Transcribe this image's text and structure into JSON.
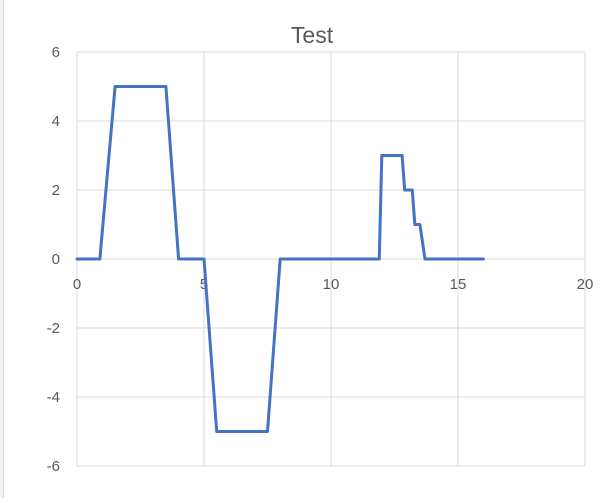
{
  "chart_data": {
    "type": "line",
    "title": "Test",
    "xlabel": "",
    "ylabel": "",
    "xlim": [
      0,
      20
    ],
    "ylim": [
      -6,
      6
    ],
    "x_ticks": [
      0,
      5,
      10,
      15,
      20
    ],
    "x_tick_labels": [
      "0",
      "5",
      "10",
      "15",
      "20"
    ],
    "y_ticks": [
      6,
      4,
      2,
      0,
      -2,
      -4,
      -6
    ],
    "y_tick_labels": [
      "6",
      "4",
      "2",
      "0",
      "-2",
      "-4",
      "-6"
    ],
    "grid": true,
    "legend": "none",
    "colors": {
      "line": "#4472c4",
      "grid": "#d9d9d9",
      "text": "#595959"
    },
    "series": [
      {
        "x": [
          0,
          0.9,
          1.5,
          3.5,
          4.0,
          5.0,
          5.5,
          7.5,
          8.0,
          11.9,
          12.0,
          12.8,
          12.9,
          13.2,
          13.3,
          13.5,
          13.7,
          16.0
        ],
        "y": [
          0,
          0,
          5,
          5,
          0,
          0,
          -5,
          -5,
          0,
          0,
          3,
          3,
          2,
          2,
          1,
          1,
          0,
          0
        ]
      }
    ]
  }
}
